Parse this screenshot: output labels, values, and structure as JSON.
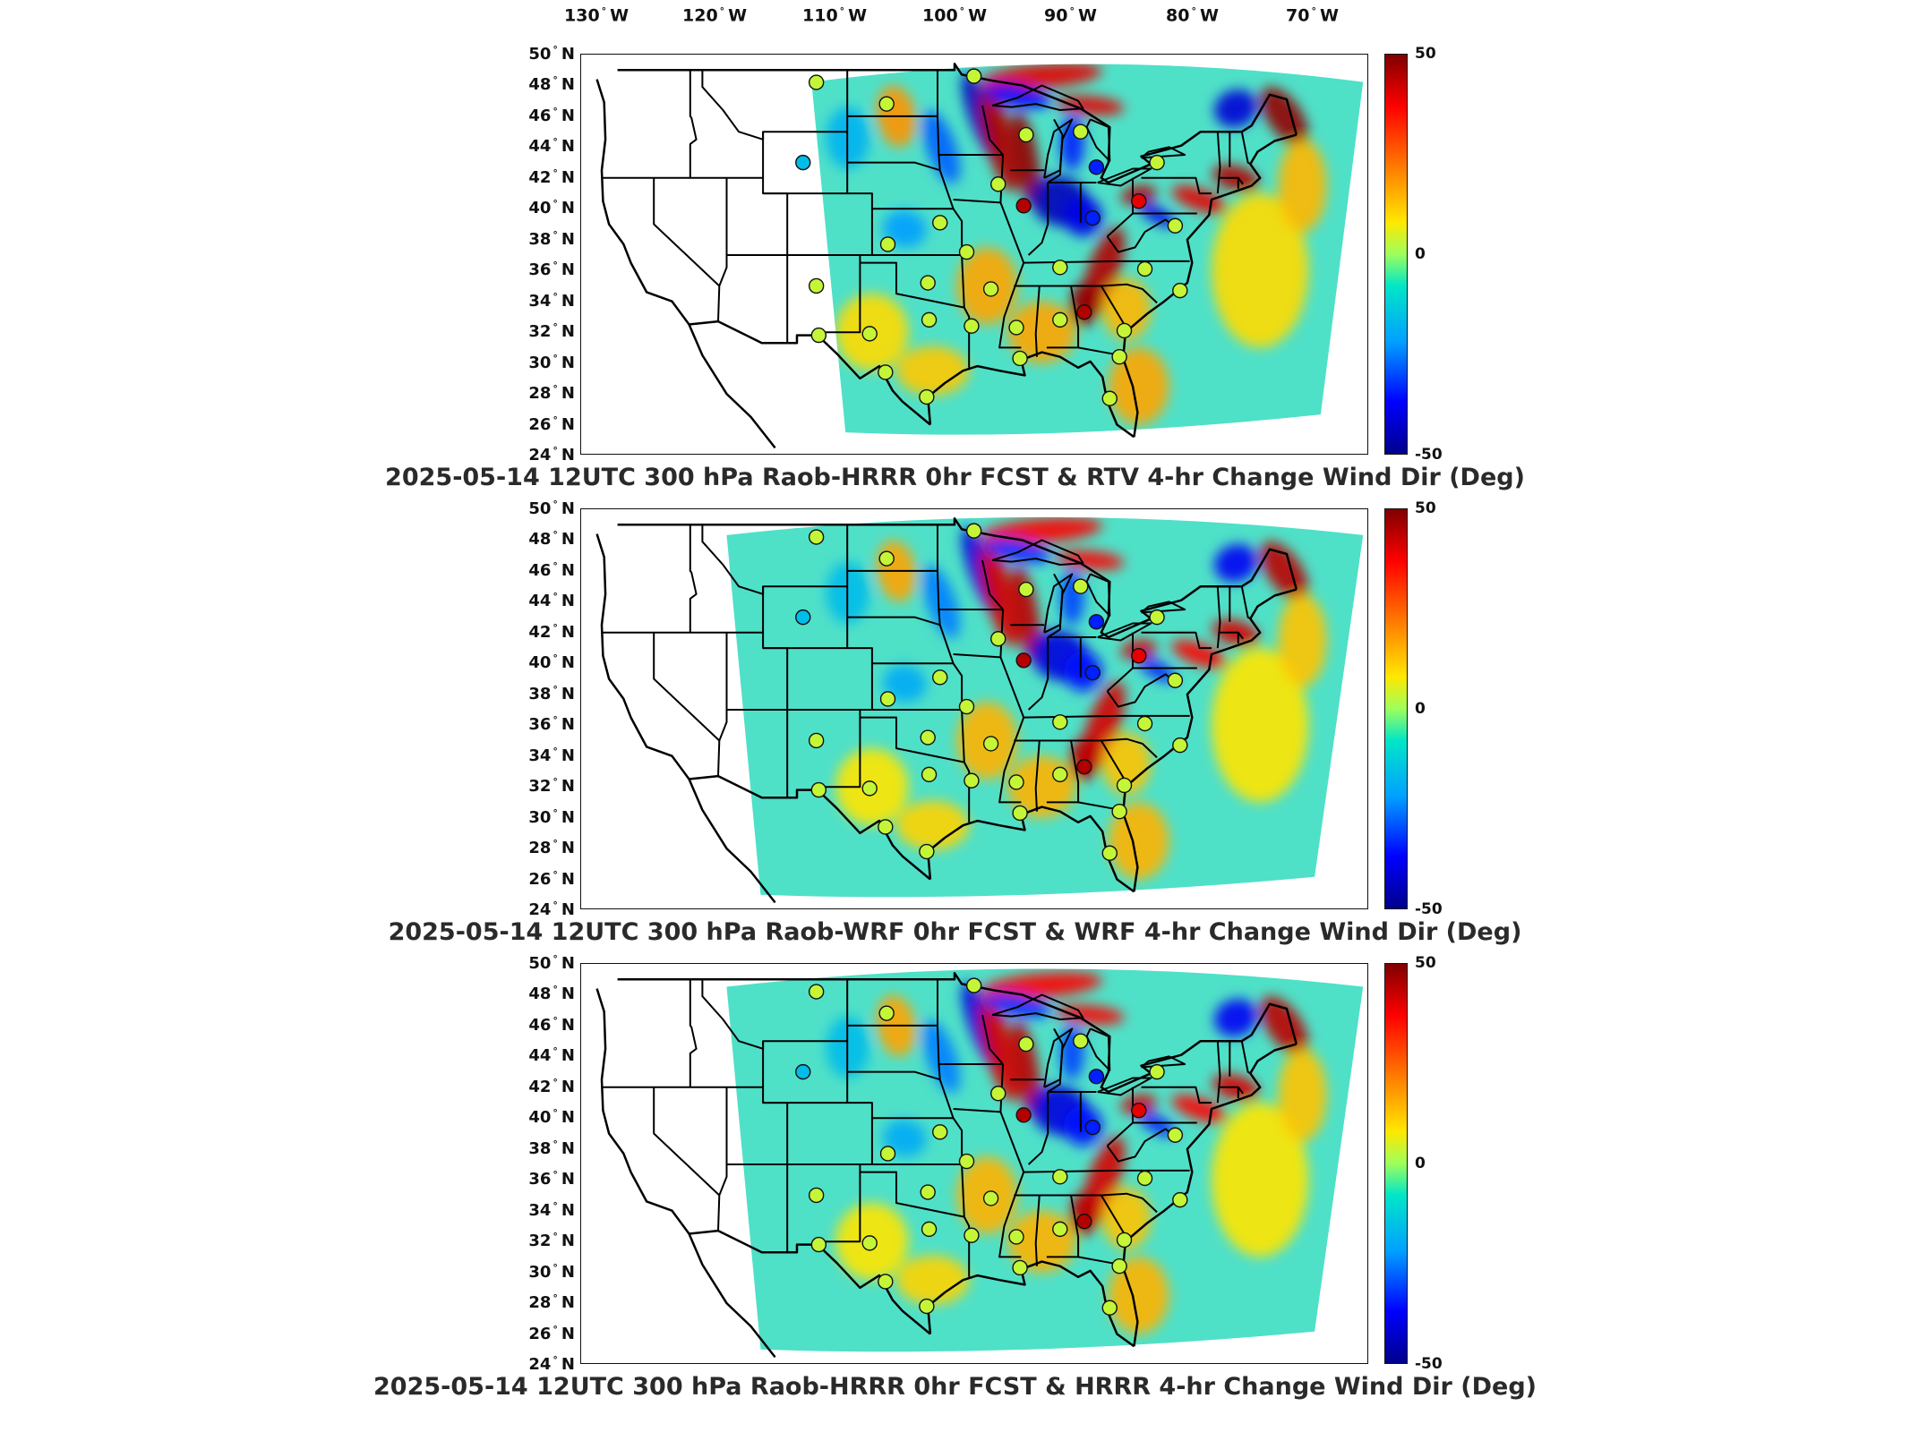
{
  "longitude_labels": [
    {
      "deg": "130",
      "hem": "W"
    },
    {
      "deg": "120",
      "hem": "W"
    },
    {
      "deg": "110",
      "hem": "W"
    },
    {
      "deg": "100",
      "hem": "W"
    },
    {
      "deg": "90",
      "hem": "W"
    },
    {
      "deg": "80",
      "hem": "W"
    },
    {
      "deg": "70",
      "hem": "W"
    }
  ],
  "latitude_labels": [
    {
      "deg": "50",
      "hem": "N"
    },
    {
      "deg": "48",
      "hem": "N"
    },
    {
      "deg": "46",
      "hem": "N"
    },
    {
      "deg": "44",
      "hem": "N"
    },
    {
      "deg": "42",
      "hem": "N"
    },
    {
      "deg": "40",
      "hem": "N"
    },
    {
      "deg": "38",
      "hem": "N"
    },
    {
      "deg": "36",
      "hem": "N"
    },
    {
      "deg": "34",
      "hem": "N"
    },
    {
      "deg": "32",
      "hem": "N"
    },
    {
      "deg": "30",
      "hem": "N"
    },
    {
      "deg": "28",
      "hem": "N"
    },
    {
      "deg": "26",
      "hem": "N"
    },
    {
      "deg": "24",
      "hem": "N"
    }
  ],
  "colorbar": {
    "max": "50",
    "mid": "0",
    "min": "-50",
    "colors": [
      "#800000",
      "#ff0000",
      "#ff7a00",
      "#ffe800",
      "#9dff5c",
      "#00e6c8",
      "#00a0ff",
      "#0000ff",
      "#00008b"
    ]
  },
  "panels": [
    {
      "title": "2025-05-14 12UTC 300 hPa Raob-HRRR 0hr FCST & RTV 4-hr Change Wind Dir (Deg)",
      "domain": "rtv"
    },
    {
      "title": "2025-05-14 12UTC 300 hPa Raob-WRF 0hr FCST & WRF 4-hr Change Wind Dir (Deg)",
      "domain": "wrf"
    },
    {
      "title": "2025-05-14 12UTC 300 hPa Raob-HRRR 0hr FCST & HRRR 4-hr Change Wind Dir (Deg)",
      "domain": "hrrr"
    }
  ],
  "stations": [
    {
      "lon": -106.6,
      "lat": 48.2,
      "value": 5
    },
    {
      "lon": -100.8,
      "lat": 46.8,
      "value": 5
    },
    {
      "lon": -93.6,
      "lat": 48.6,
      "value": 5
    },
    {
      "lon": -107.7,
      "lat": 43.0,
      "value": -20
    },
    {
      "lon": -89.3,
      "lat": 44.8,
      "value": 5
    },
    {
      "lon": -84.8,
      "lat": 45.0,
      "value": 5
    },
    {
      "lon": -83.5,
      "lat": 42.7,
      "value": -35
    },
    {
      "lon": -78.5,
      "lat": 43.0,
      "value": 5
    },
    {
      "lon": -91.6,
      "lat": 41.6,
      "value": 5
    },
    {
      "lon": -89.5,
      "lat": 40.2,
      "value": 45
    },
    {
      "lon": -83.8,
      "lat": 39.4,
      "value": -35
    },
    {
      "lon": -80.0,
      "lat": 40.5,
      "value": 40
    },
    {
      "lon": -77.0,
      "lat": 38.9,
      "value": 5
    },
    {
      "lon": -96.4,
      "lat": 39.1,
      "value": 5
    },
    {
      "lon": -100.7,
      "lat": 37.7,
      "value": 5
    },
    {
      "lon": -94.2,
      "lat": 37.2,
      "value": 5
    },
    {
      "lon": -86.5,
      "lat": 36.2,
      "value": 5
    },
    {
      "lon": -79.5,
      "lat": 36.1,
      "value": 5
    },
    {
      "lon": -76.6,
      "lat": 34.7,
      "value": 5
    },
    {
      "lon": -106.6,
      "lat": 35.0,
      "value": 5
    },
    {
      "lon": -97.4,
      "lat": 35.2,
      "value": 5
    },
    {
      "lon": -92.2,
      "lat": 34.8,
      "value": 5
    },
    {
      "lon": -84.5,
      "lat": 33.3,
      "value": 45
    },
    {
      "lon": -86.5,
      "lat": 32.8,
      "value": 5
    },
    {
      "lon": -90.1,
      "lat": 32.3,
      "value": 5
    },
    {
      "lon": -93.8,
      "lat": 32.4,
      "value": 5
    },
    {
      "lon": -97.3,
      "lat": 32.8,
      "value": 5
    },
    {
      "lon": -102.2,
      "lat": 31.9,
      "value": 5
    },
    {
      "lon": -106.4,
      "lat": 31.8,
      "value": 5
    },
    {
      "lon": -81.2,
      "lat": 32.1,
      "value": 5
    },
    {
      "lon": -81.6,
      "lat": 30.4,
      "value": 5
    },
    {
      "lon": -82.4,
      "lat": 27.7,
      "value": 5
    },
    {
      "lon": -97.5,
      "lat": 27.8,
      "value": 5
    },
    {
      "lon": -100.9,
      "lat": 29.4,
      "value": 5
    },
    {
      "lon": -89.8,
      "lat": 30.3,
      "value": 5
    }
  ]
}
